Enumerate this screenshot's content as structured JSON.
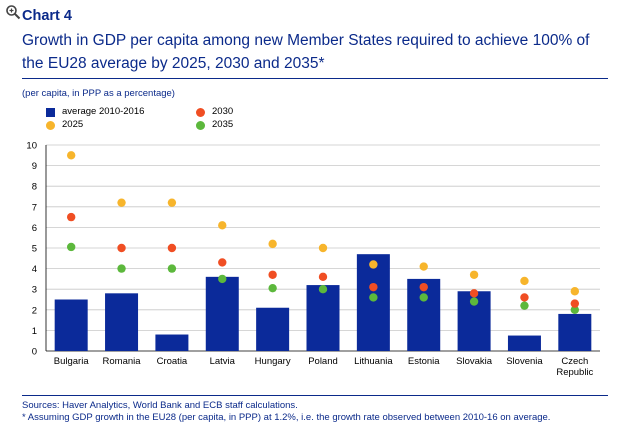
{
  "header": {
    "chart_label": "Chart 4",
    "title_line1": "Growth in GDP per capita among new Member States required to achieve 100% of",
    "title_line2": "the EU28 average by 2025, 2030 and 2035*",
    "subtitle": "(per capita, in PPP as a percentage)"
  },
  "legend": {
    "avg": "average 2010-2016",
    "y2025": "2025",
    "y2030": "2030",
    "y2035": "2035"
  },
  "footer": {
    "sources": "Sources: Haver Analytics, World Bank and ECB staff calculations.",
    "note": "* Assuming GDP growth in the EU28 (per capita, in PPP) at 1.2%, i.e. the growth rate observed between 2010-16 on average."
  },
  "colors": {
    "bar": "#0b2a9a",
    "y2025": "#f7b52c",
    "y2030": "#f04e23",
    "y2035": "#5cb83c",
    "grid": "#c8c8c8",
    "text_blue": "#0b2a8a"
  },
  "chart_data": {
    "type": "bar",
    "title": "Growth in GDP per capita among new Member States required to achieve 100% of the EU28 average by 2025, 2030 and 2035*",
    "ylabel": "(per capita, in PPP as a percentage)",
    "ylim": [
      0,
      10
    ],
    "yticks": [
      "0",
      "1",
      "2",
      "3",
      "4",
      "5",
      "6",
      "7",
      "8",
      "9",
      "10"
    ],
    "grid": true,
    "legend_position": "top-left",
    "categories": [
      [
        "Bulgaria"
      ],
      [
        "Romania"
      ],
      [
        "Croatia"
      ],
      [
        "Latvia"
      ],
      [
        "Hungary"
      ],
      [
        "Poland"
      ],
      [
        "Lithuania"
      ],
      [
        "Estonia"
      ],
      [
        "Slovakia"
      ],
      [
        "Slovenia"
      ],
      [
        "Czech",
        "Republic"
      ]
    ],
    "series": [
      {
        "name": "average 2010-2016",
        "type": "bar",
        "values": [
          2.5,
          2.8,
          0.8,
          3.6,
          2.1,
          3.2,
          4.7,
          3.5,
          2.9,
          0.75,
          1.8
        ]
      },
      {
        "name": "2025",
        "type": "scatter",
        "values": [
          9.5,
          7.2,
          7.2,
          6.1,
          5.2,
          5.0,
          4.2,
          4.1,
          3.7,
          3.4,
          2.9
        ]
      },
      {
        "name": "2030",
        "type": "scatter",
        "values": [
          6.5,
          5.0,
          5.0,
          4.3,
          3.7,
          3.6,
          3.1,
          3.1,
          2.8,
          2.6,
          2.3
        ]
      },
      {
        "name": "2035",
        "type": "scatter",
        "values": [
          5.05,
          4.0,
          4.0,
          3.5,
          3.05,
          3.0,
          2.6,
          2.6,
          2.4,
          2.2,
          2.0
        ]
      }
    ]
  }
}
